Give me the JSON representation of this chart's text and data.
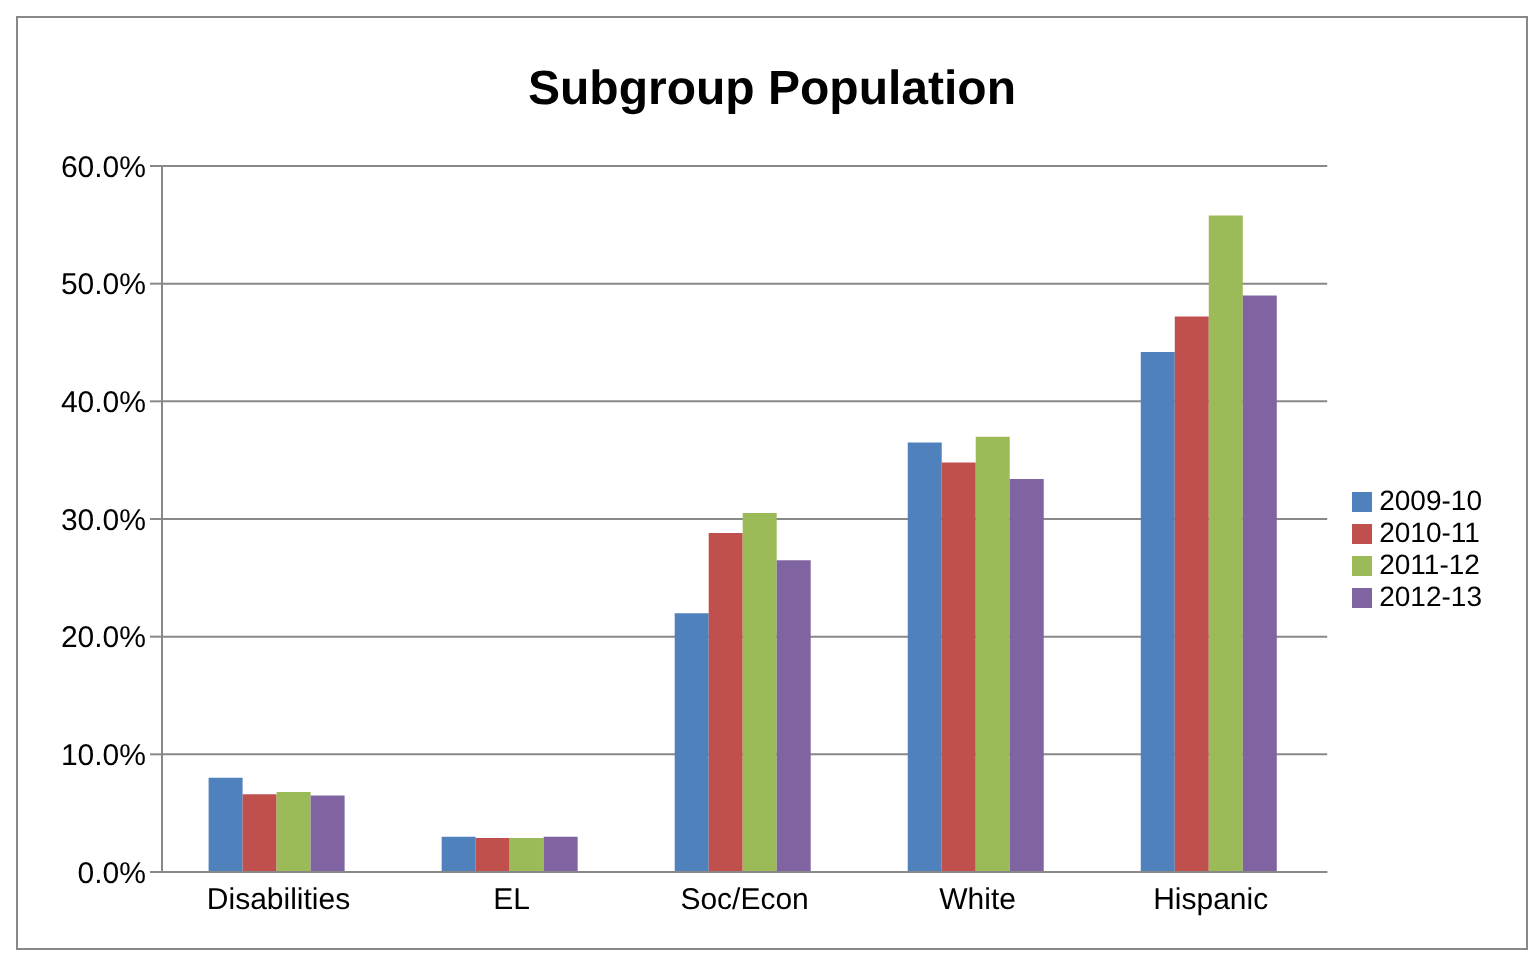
{
  "chart_data": {
    "type": "bar",
    "title": "Subgroup Population",
    "categories": [
      "Disabilities",
      "EL",
      "Soc/Econ",
      "White",
      "Hispanic"
    ],
    "series": [
      {
        "name": "2009-10",
        "color": "#4f81bd",
        "values": [
          8.0,
          3.0,
          22.0,
          36.5,
          44.2
        ]
      },
      {
        "name": "2010-11",
        "color": "#c0504d",
        "values": [
          6.6,
          2.9,
          28.8,
          34.8,
          47.2
        ]
      },
      {
        "name": "2011-12",
        "color": "#9bbb59",
        "values": [
          6.8,
          2.9,
          30.5,
          37.0,
          55.8
        ]
      },
      {
        "name": "2012-13",
        "color": "#8064a2",
        "values": [
          6.5,
          3.0,
          26.5,
          33.4,
          49.0
        ]
      }
    ],
    "ylim": [
      0,
      60
    ],
    "yticks": [
      {
        "value": 0,
        "label": "0.0%"
      },
      {
        "value": 10,
        "label": "10.0%"
      },
      {
        "value": 20,
        "label": "20.0%"
      },
      {
        "value": 30,
        "label": "30.0%"
      },
      {
        "value": 40,
        "label": "40.0%"
      },
      {
        "value": 50,
        "label": "50.0%"
      },
      {
        "value": 60,
        "label": "60.0%"
      }
    ],
    "grid": "y",
    "legend": "right"
  }
}
